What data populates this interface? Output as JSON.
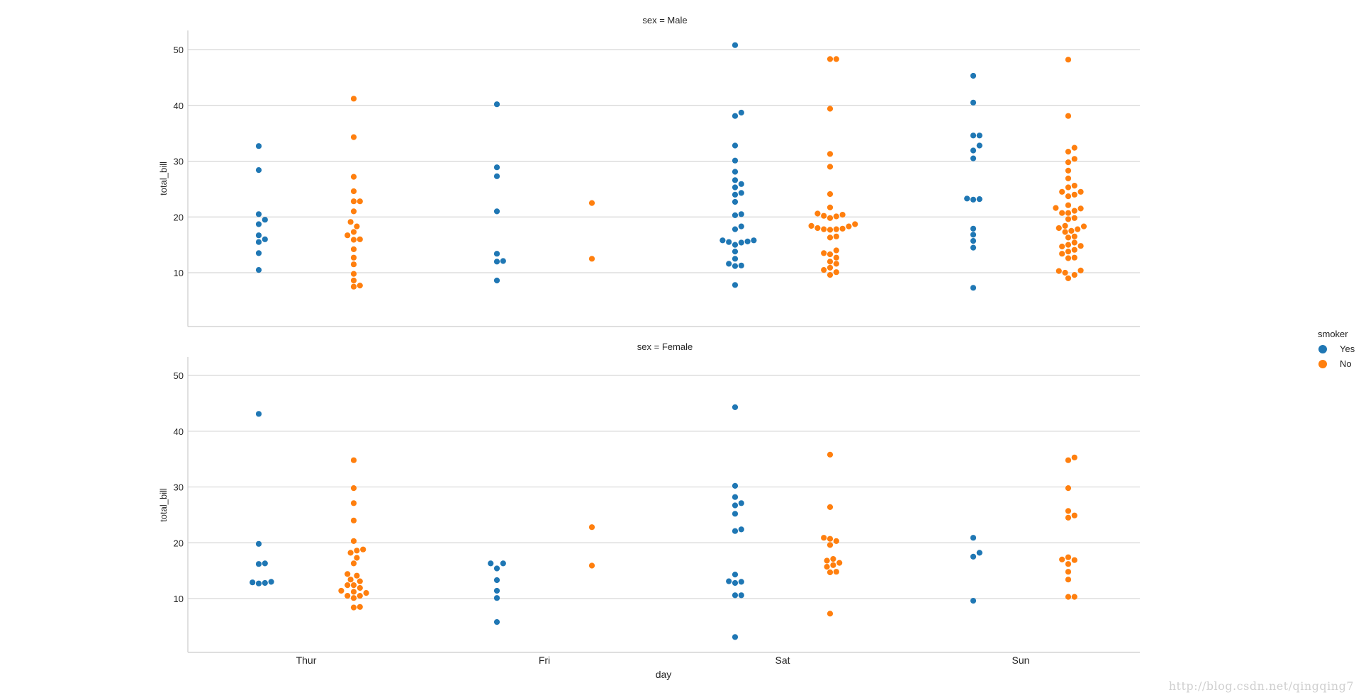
{
  "watermark": "http://blog.csdn.net/qingqing7",
  "colors": {
    "Yes": "#1f77b4",
    "No": "#ff7f0e",
    "grid": "#cccccc",
    "axis": "#cccccc",
    "text": "#262626"
  },
  "chart_data": {
    "type": "scatter",
    "subtype": "swarm",
    "x": "day",
    "y": "total_bill",
    "hue": "smoker",
    "row": "sex",
    "categories": [
      "Thur",
      "Fri",
      "Sat",
      "Sun"
    ],
    "hue_order": [
      "Yes",
      "No"
    ],
    "xlabel": "day",
    "ylabel": "total_bill",
    "ylim": [
      0,
      53
    ],
    "yticks": [
      10,
      20,
      30,
      40,
      50
    ],
    "grid": "horizontal",
    "legend": {
      "title": "smoker",
      "entries": [
        "Yes",
        "No"
      ],
      "placement": "right"
    },
    "panels": [
      {
        "title": "sex = Male",
        "groups": {
          "Thur|Yes": [
            10.5,
            13.5,
            15.5,
            16.0,
            16.7,
            18.7,
            19.5,
            20.5,
            28.4,
            32.7
          ],
          "Thur|No": [
            7.5,
            7.7,
            8.6,
            9.8,
            11.5,
            12.7,
            14.2,
            15.9,
            16.0,
            16.7,
            17.3,
            18.3,
            19.1,
            21.0,
            22.8,
            22.8,
            24.6,
            27.2,
            34.3,
            41.2
          ],
          "Fri|Yes": [
            8.6,
            12.0,
            12.1,
            13.4,
            21.0,
            27.3,
            28.9,
            40.2
          ],
          "Fri|No": [
            12.5,
            22.5
          ],
          "Sat|Yes": [
            7.8,
            11.2,
            11.3,
            11.6,
            12.5,
            13.8,
            15.0,
            15.4,
            15.5,
            15.6,
            15.8,
            15.8,
            17.8,
            18.3,
            20.3,
            20.5,
            22.7,
            24.0,
            24.3,
            25.3,
            25.9,
            26.6,
            28.1,
            30.1,
            32.8,
            38.1,
            38.7,
            50.8
          ],
          "Sat|No": [
            9.6,
            10.1,
            10.5,
            10.9,
            11.6,
            12.0,
            12.7,
            13.3,
            13.5,
            14.0,
            16.3,
            16.5,
            17.7,
            17.8,
            17.8,
            17.9,
            18.0,
            18.3,
            18.4,
            18.7,
            19.8,
            20.1,
            20.2,
            20.4,
            20.6,
            21.7,
            24.1,
            29.0,
            31.3,
            39.4,
            48.3,
            48.3
          ],
          "Sun|Yes": [
            7.3,
            14.5,
            15.7,
            16.8,
            17.9,
            23.1,
            23.2,
            23.3,
            30.5,
            31.9,
            32.8,
            34.6,
            34.6,
            40.5,
            45.3
          ],
          "Sun|No": [
            9.0,
            9.6,
            10.0,
            10.3,
            10.4,
            12.6,
            12.7,
            13.4,
            13.8,
            14.1,
            14.7,
            14.8,
            15.0,
            15.4,
            16.3,
            16.5,
            17.3,
            17.5,
            17.8,
            18.0,
            18.3,
            18.4,
            19.6,
            19.8,
            20.7,
            20.7,
            21.1,
            21.5,
            21.6,
            22.1,
            23.7,
            24.0,
            24.5,
            24.5,
            25.3,
            25.6,
            26.9,
            28.3,
            29.8,
            30.4,
            31.7,
            32.4,
            38.1,
            48.2
          ]
        }
      },
      {
        "title": "sex = Female",
        "groups": {
          "Thur|Yes": [
            12.7,
            12.8,
            12.9,
            13.0,
            16.2,
            16.3,
            19.8,
            43.1
          ],
          "Thur|No": [
            8.4,
            8.5,
            10.1,
            10.5,
            10.5,
            11.0,
            11.2,
            11.4,
            11.9,
            12.4,
            12.4,
            13.1,
            13.4,
            14.1,
            14.4,
            16.3,
            17.3,
            18.2,
            18.6,
            18.8,
            20.3,
            24.0,
            27.1,
            29.8,
            34.8
          ],
          "Fri|Yes": [
            5.8,
            10.1,
            11.4,
            13.3,
            15.4,
            16.3,
            16.3
          ],
          "Fri|No": [
            15.9,
            22.8
          ],
          "Sat|Yes": [
            3.1,
            10.6,
            10.6,
            12.8,
            13.0,
            13.1,
            14.3,
            22.1,
            22.4,
            25.2,
            26.7,
            27.1,
            28.2,
            30.2,
            44.3
          ],
          "Sat|No": [
            7.3,
            14.7,
            14.8,
            15.7,
            16.0,
            16.4,
            16.8,
            17.1,
            19.6,
            20.3,
            20.7,
            20.9,
            26.4,
            35.8
          ],
          "Sun|Yes": [
            9.6,
            17.5,
            18.2,
            20.9
          ],
          "Sun|No": [
            10.3,
            10.3,
            13.4,
            14.8,
            16.2,
            16.9,
            17.0,
            17.4,
            24.5,
            24.9,
            25.7,
            29.8,
            34.8,
            35.3
          ]
        }
      }
    ]
  }
}
